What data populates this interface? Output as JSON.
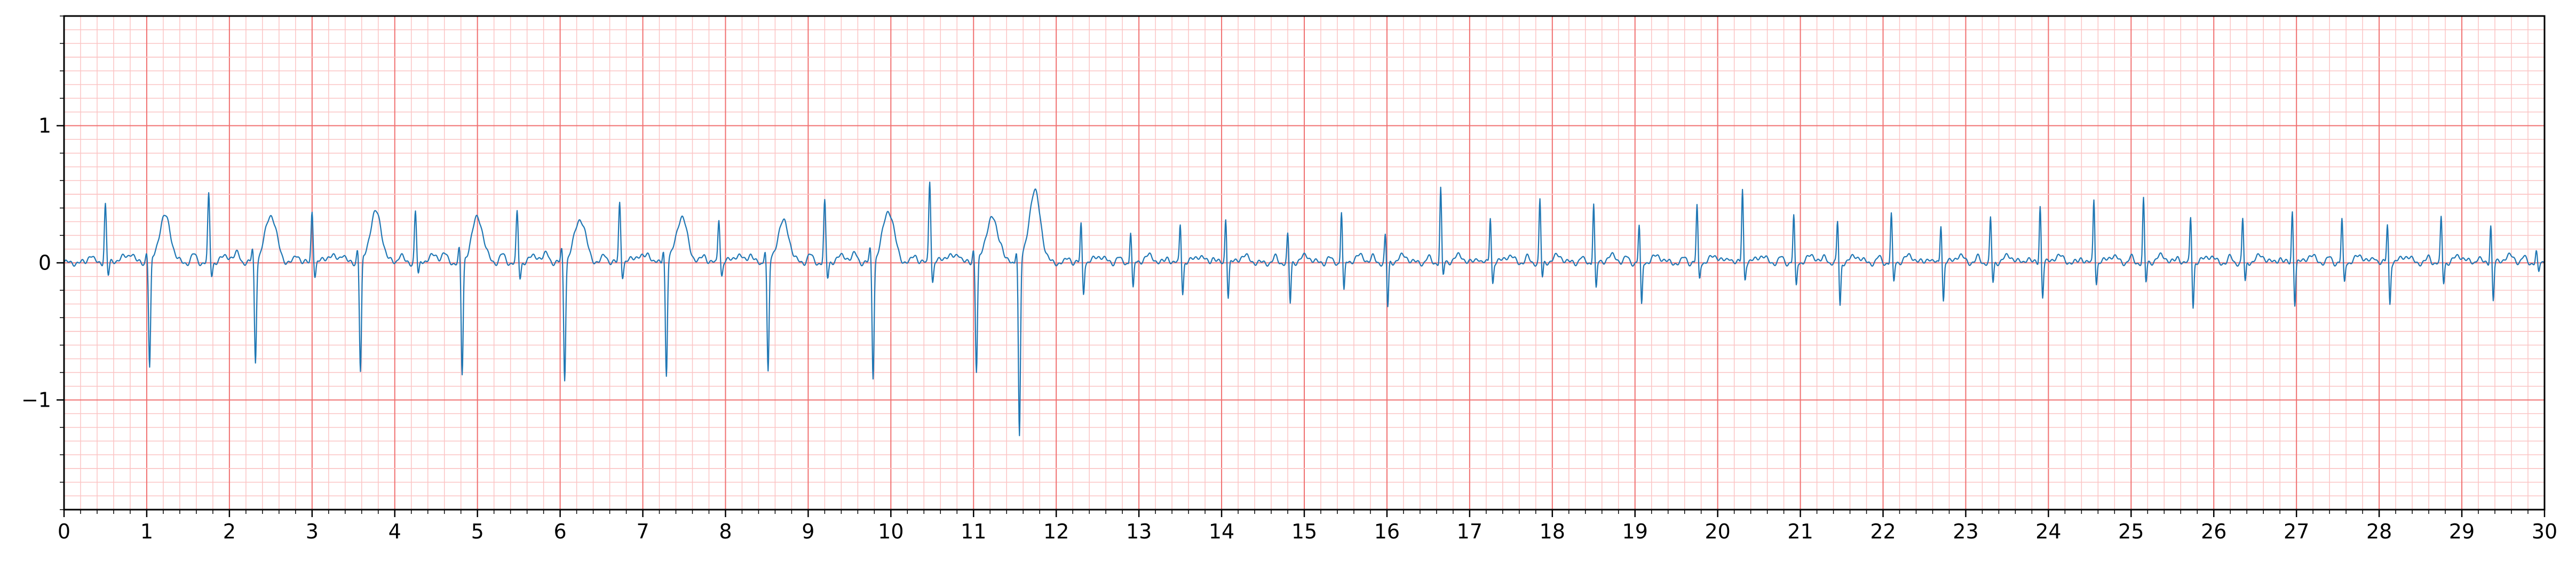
{
  "chart_data": {
    "type": "line",
    "title": "",
    "xlabel": "",
    "ylabel": "",
    "xlim": [
      0,
      30
    ],
    "ylim": [
      -1.8,
      1.8
    ],
    "grid": true,
    "major_grid_color": "#f07070",
    "minor_grid_color": "#fbc4c4",
    "line_color": "#1f77b4",
    "x_ticks": [
      0,
      1,
      2,
      3,
      4,
      5,
      6,
      7,
      8,
      9,
      10,
      11,
      12,
      13,
      14,
      15,
      16,
      17,
      18,
      19,
      20,
      21,
      22,
      23,
      24,
      25,
      26,
      27,
      28,
      29,
      30
    ],
    "x_tick_labels": [
      "0",
      "1",
      "2",
      "3",
      "4",
      "5",
      "6",
      "7",
      "8",
      "9",
      "10",
      "11",
      "12",
      "13",
      "14",
      "15",
      "16",
      "17",
      "18",
      "19",
      "20",
      "21",
      "22",
      "23",
      "24",
      "25",
      "26",
      "27",
      "28",
      "29",
      "30"
    ],
    "y_ticks": [
      -1,
      0,
      1
    ],
    "y_tick_labels": [
      "−1",
      "0",
      "1"
    ],
    "series": [
      {
        "name": "",
        "segment_1": {
          "x_range": [
            0,
            11.9
          ],
          "description_free": true,
          "beats": [
            {
              "t": 0.5,
              "r": 0.43,
              "s": -0.1,
              "t_wave": 0.04
            },
            {
              "t": 1.0,
              "r": 0.08,
              "s": -0.78,
              "t_wave": 0.34
            },
            {
              "t": 1.75,
              "r": 0.49,
              "s": -0.1,
              "t_wave": 0.05
            },
            {
              "t": 2.28,
              "r": 0.1,
              "s": -0.73,
              "t_wave": 0.35
            },
            {
              "t": 3.0,
              "r": 0.38,
              "s": -0.1,
              "t_wave": 0.05
            },
            {
              "t": 3.55,
              "r": 0.1,
              "s": -0.81,
              "t_wave": 0.37
            },
            {
              "t": 4.25,
              "r": 0.38,
              "s": -0.1,
              "t_wave": 0.05
            },
            {
              "t": 4.78,
              "r": 0.1,
              "s": -0.83,
              "t_wave": 0.33
            },
            {
              "t": 5.48,
              "r": 0.36,
              "s": -0.12,
              "t_wave": 0.05
            },
            {
              "t": 6.02,
              "r": 0.1,
              "s": -0.85,
              "t_wave": 0.32
            },
            {
              "t": 6.72,
              "r": 0.44,
              "s": -0.1,
              "t_wave": 0.05
            },
            {
              "t": 7.25,
              "r": 0.1,
              "s": -0.83,
              "t_wave": 0.33
            },
            {
              "t": 7.92,
              "r": 0.33,
              "s": -0.1,
              "t_wave": 0.05
            },
            {
              "t": 8.48,
              "r": 0.1,
              "s": -0.82,
              "t_wave": 0.3
            },
            {
              "t": 9.2,
              "r": 0.44,
              "s": -0.12,
              "t_wave": 0.05
            },
            {
              "t": 9.75,
              "r": 0.1,
              "s": -0.84,
              "t_wave": 0.38
            },
            {
              "t": 10.47,
              "r": 0.61,
              "s": -0.15,
              "t_wave": 0.05
            },
            {
              "t": 11.0,
              "r": 0.1,
              "s": -0.8,
              "t_wave": 0.33
            },
            {
              "t": 11.52,
              "r": 0.1,
              "s": -1.29,
              "t_wave": 0.52
            }
          ]
        },
        "segment_2": {
          "x_range": [
            11.9,
            30
          ],
          "beats": [
            {
              "t": 12.3,
              "r": 0.28,
              "s": -0.22
            },
            {
              "t": 12.9,
              "r": 0.23,
              "s": -0.2
            },
            {
              "t": 13.5,
              "r": 0.28,
              "s": -0.22
            },
            {
              "t": 14.05,
              "r": 0.33,
              "s": -0.25
            },
            {
              "t": 14.8,
              "r": 0.2,
              "s": -0.3
            },
            {
              "t": 15.45,
              "r": 0.38,
              "s": -0.22
            },
            {
              "t": 15.98,
              "r": 0.2,
              "s": -0.33
            },
            {
              "t": 16.65,
              "r": 0.54,
              "s": -0.1
            },
            {
              "t": 17.25,
              "r": 0.34,
              "s": -0.15
            },
            {
              "t": 17.85,
              "r": 0.46,
              "s": -0.12
            },
            {
              "t": 18.5,
              "r": 0.44,
              "s": -0.2
            },
            {
              "t": 19.05,
              "r": 0.27,
              "s": -0.32
            },
            {
              "t": 19.75,
              "r": 0.41,
              "s": -0.12
            },
            {
              "t": 20.3,
              "r": 0.54,
              "s": -0.12
            },
            {
              "t": 20.92,
              "r": 0.34,
              "s": -0.18
            },
            {
              "t": 21.45,
              "r": 0.3,
              "s": -0.32
            },
            {
              "t": 22.1,
              "r": 0.35,
              "s": -0.15
            },
            {
              "t": 22.7,
              "r": 0.29,
              "s": -0.28
            },
            {
              "t": 23.3,
              "r": 0.32,
              "s": -0.15
            },
            {
              "t": 23.9,
              "r": 0.42,
              "s": -0.25
            },
            {
              "t": 24.55,
              "r": 0.47,
              "s": -0.15
            },
            {
              "t": 25.15,
              "r": 0.46,
              "s": -0.15
            },
            {
              "t": 25.72,
              "r": 0.33,
              "s": -0.32
            },
            {
              "t": 26.35,
              "r": 0.32,
              "s": -0.15
            },
            {
              "t": 26.95,
              "r": 0.38,
              "s": -0.3
            },
            {
              "t": 27.55,
              "r": 0.31,
              "s": -0.15
            },
            {
              "t": 28.1,
              "r": 0.28,
              "s": -0.3
            },
            {
              "t": 28.75,
              "r": 0.32,
              "s": -0.15
            },
            {
              "t": 29.35,
              "r": 0.28,
              "s": -0.28
            },
            {
              "t": 29.9,
              "r": 0.08,
              "s": -0.08
            }
          ]
        }
      }
    ]
  }
}
